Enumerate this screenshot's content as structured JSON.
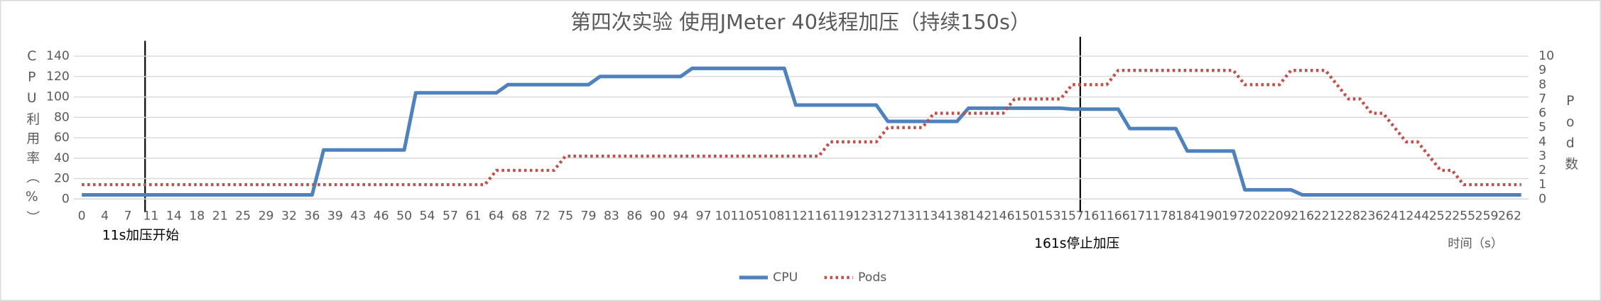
{
  "chart_data": {
    "type": "line",
    "title": "第四次实验 使用JMeter 40线程加压（持续150s）",
    "x_label": "时间（s）",
    "y_label": "CPU利用率（%）",
    "y2_label": "Pod数",
    "annotations": [
      "11s加压开始",
      "161s停止加压"
    ],
    "categories": [
      "0",
      null,
      "4",
      null,
      "7",
      null,
      "11",
      null,
      "14",
      null,
      "18",
      null,
      "21",
      null,
      "25",
      null,
      "29",
      null,
      "32",
      null,
      "36",
      null,
      "39",
      null,
      "43",
      null,
      "46",
      null,
      "50",
      null,
      "54",
      null,
      "57",
      null,
      "61",
      null,
      "64",
      null,
      "68",
      null,
      "72",
      null,
      "75",
      null,
      "79",
      null,
      "83",
      null,
      "86",
      null,
      "90",
      null,
      "94",
      null,
      "97",
      null,
      "101",
      null,
      "105",
      null,
      "108",
      null,
      "112",
      null,
      "116",
      null,
      "119",
      null,
      "123",
      null,
      "127",
      null,
      "131",
      null,
      "134",
      null,
      "138",
      null,
      "142",
      null,
      "146",
      null,
      "150",
      null,
      "153",
      null,
      "157",
      null,
      "161",
      null,
      "166",
      null,
      "171",
      null,
      "178",
      null,
      "184",
      null,
      "190",
      null,
      "197",
      null,
      "202",
      null,
      "209",
      null,
      "216",
      null,
      "221",
      null,
      "228",
      null,
      "236",
      null,
      "241",
      null,
      "244",
      null,
      "252",
      null,
      "255",
      null,
      "259",
      null,
      "262",
      null
    ],
    "series": [
      {
        "name": "CPU",
        "color": "#4f81bd",
        "line_style": "solid",
        "values": [
          4,
          4,
          4,
          4,
          4,
          4,
          4,
          4,
          4,
          4,
          4,
          4,
          4,
          4,
          4,
          4,
          4,
          4,
          4,
          4,
          4,
          48,
          48,
          48,
          48,
          48,
          48,
          48,
          48,
          104,
          104,
          104,
          104,
          104,
          104,
          104,
          104,
          112,
          112,
          112,
          112,
          112,
          112,
          112,
          112,
          120,
          120,
          120,
          120,
          120,
          120,
          120,
          120,
          128,
          128,
          128,
          128,
          128,
          128,
          128,
          128,
          128,
          92,
          92,
          92,
          92,
          92,
          92,
          92,
          92,
          76,
          76,
          76,
          76,
          76,
          76,
          76,
          89,
          89,
          89,
          89,
          89,
          89,
          89,
          89,
          89,
          88,
          88,
          88,
          88,
          88,
          69,
          69,
          69,
          69,
          69,
          47,
          47,
          47,
          47,
          47,
          9,
          9,
          9,
          9,
          9,
          4,
          4,
          4,
          4,
          4,
          4,
          4,
          4,
          4,
          4,
          4,
          4,
          4,
          4,
          4,
          4,
          4,
          4,
          4,
          4
        ]
      },
      {
        "name": "Pods",
        "color": "#c0504d",
        "line_style": "dotted",
        "axis": "y2",
        "values": [
          1,
          1,
          1,
          1,
          1,
          1,
          1,
          1,
          1,
          1,
          1,
          1,
          1,
          1,
          1,
          1,
          1,
          1,
          1,
          1,
          1,
          1,
          1,
          1,
          1,
          1,
          1,
          1,
          1,
          1,
          1,
          1,
          1,
          1,
          1,
          1,
          2,
          2,
          2,
          2,
          2,
          2,
          3,
          3,
          3,
          3,
          3,
          3,
          3,
          3,
          3,
          3,
          3,
          3,
          3,
          3,
          3,
          3,
          3,
          3,
          3,
          3,
          3,
          3,
          3,
          4,
          4,
          4,
          4,
          4,
          5,
          5,
          5,
          5,
          6,
          6,
          6,
          6,
          6,
          6,
          6,
          7,
          7,
          7,
          7,
          7,
          8,
          8,
          8,
          8,
          9,
          9,
          9,
          9,
          9,
          9,
          9,
          9,
          9,
          9,
          9,
          8,
          8,
          8,
          8,
          9,
          9,
          9,
          9,
          8,
          7,
          7,
          6,
          6,
          5,
          4,
          4,
          3,
          2,
          2,
          1,
          1,
          1,
          1,
          1,
          1
        ]
      }
    ],
    "ylim": [
      0,
      140
    ],
    "yticks": [
      0,
      20,
      40,
      60,
      80,
      100,
      120,
      140
    ],
    "y2lim": [
      0,
      10
    ],
    "y2ticks": [
      0,
      1,
      2,
      3,
      4,
      5,
      6,
      7,
      8,
      9,
      10
    ],
    "grid": true,
    "legend": "bottom"
  }
}
